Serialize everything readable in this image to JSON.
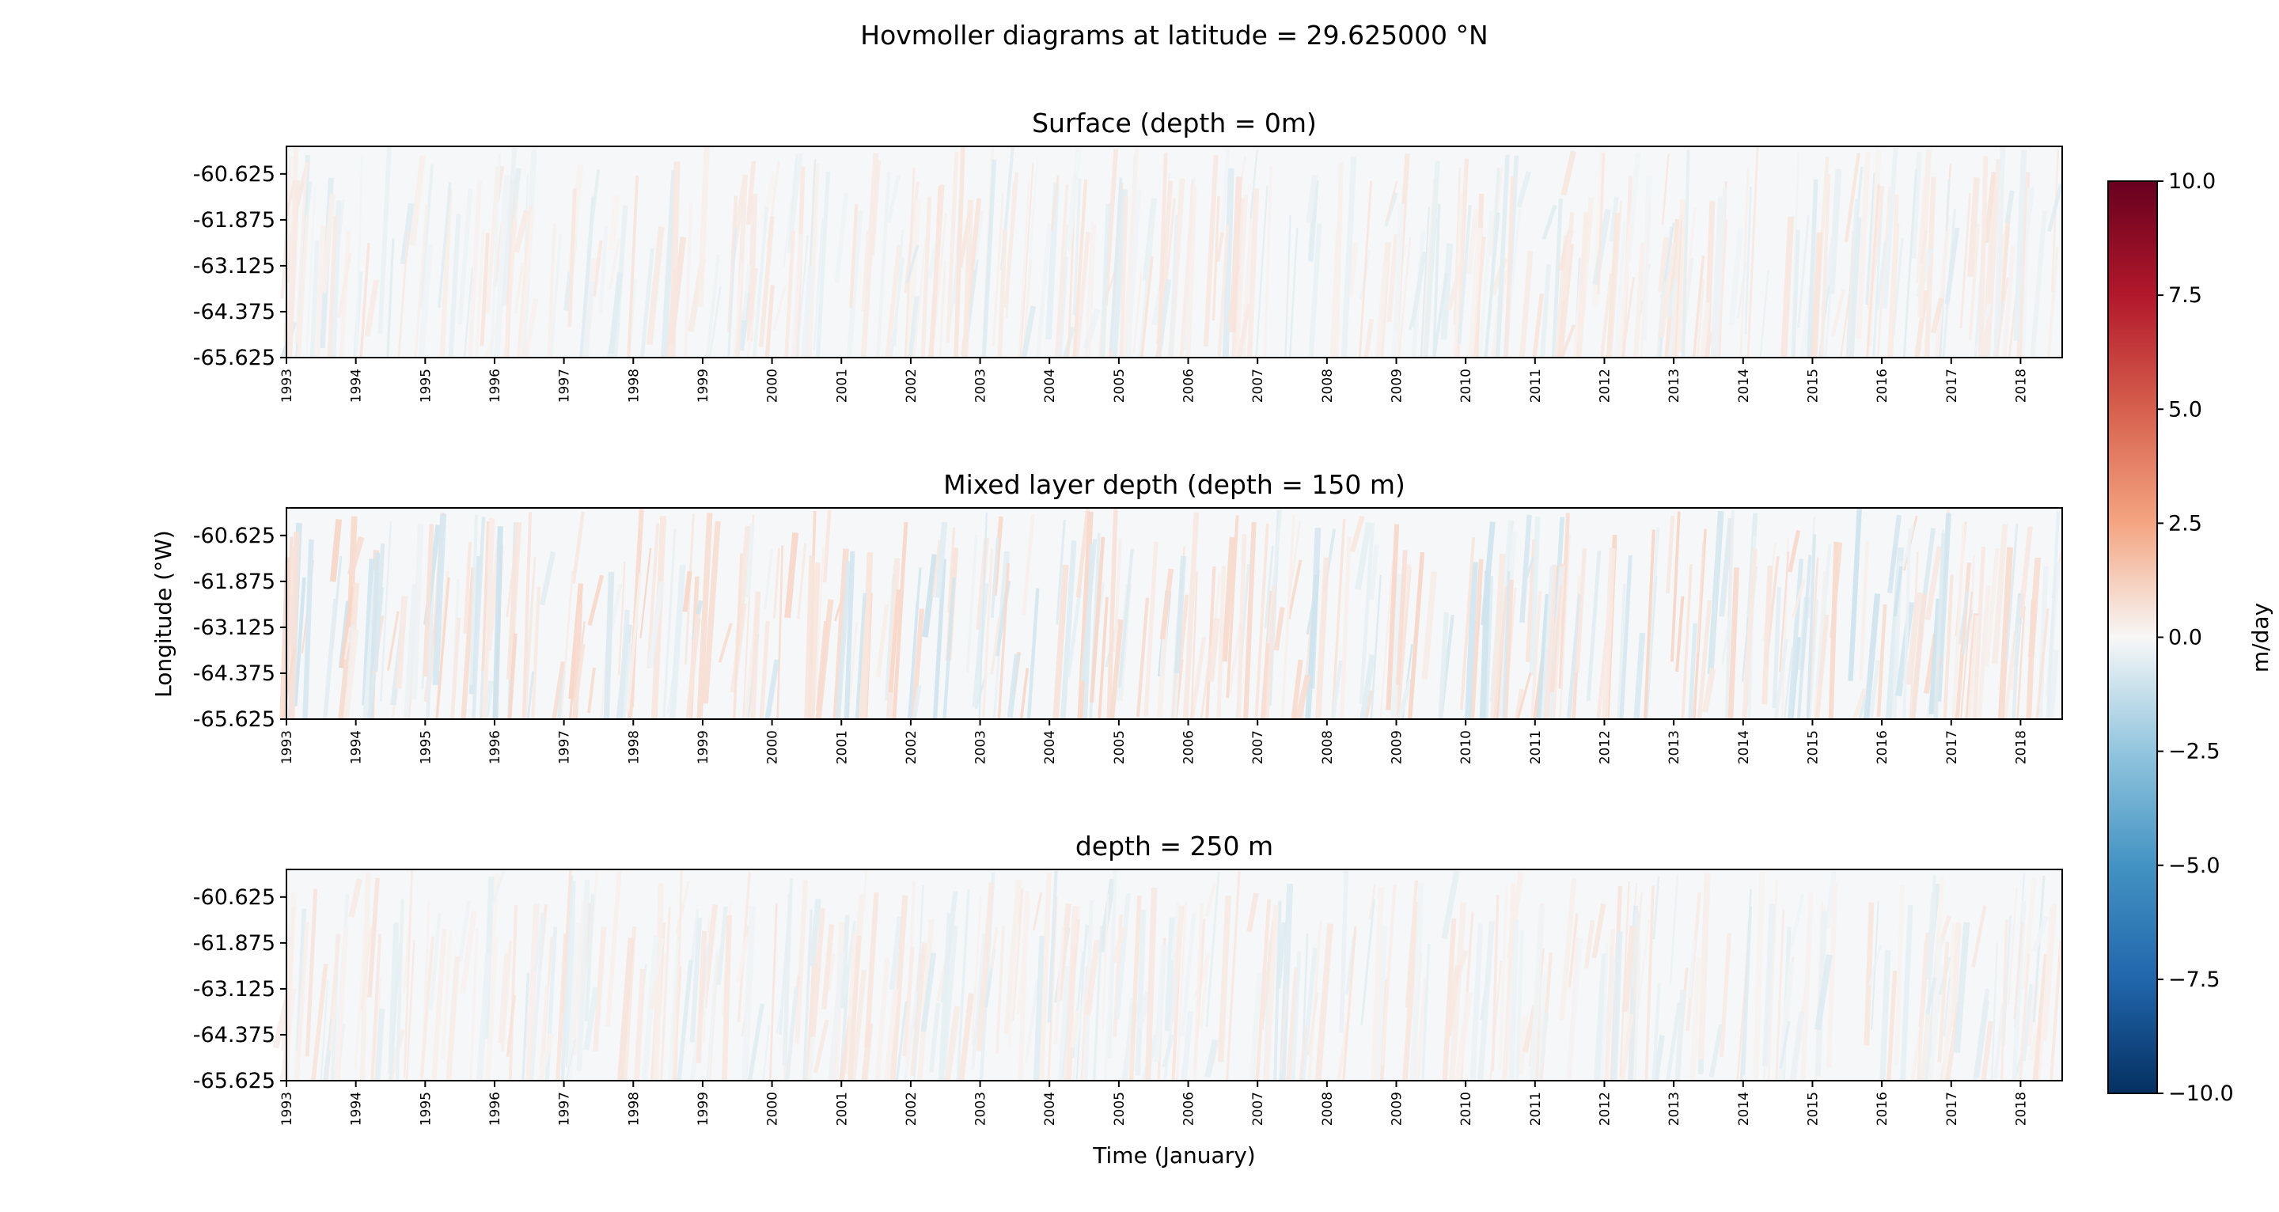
{
  "chart_data": {
    "type": "heatmap",
    "suptitle": "Hovmoller diagrams at latitude = 29.625000 °N",
    "xlabel": "Time (January)",
    "ylabel": "Longitude (°W)",
    "x_ticks": [
      "1993",
      "1994",
      "1995",
      "1996",
      "1997",
      "1998",
      "1999",
      "2000",
      "2001",
      "2002",
      "2003",
      "2004",
      "2005",
      "2006",
      "2007",
      "2008",
      "2009",
      "2010",
      "2011",
      "2012",
      "2013",
      "2014",
      "2015",
      "2016",
      "2017",
      "2018"
    ],
    "x_range_years": [
      1993,
      2018.6
    ],
    "y_ticks": [
      "-60.625",
      "-61.875",
      "-63.125",
      "-64.375",
      "-65.625"
    ],
    "y_tick_values": [
      -60.625,
      -61.875,
      -63.125,
      -64.375,
      -65.625
    ],
    "y_range": [
      -65.625,
      -59.875
    ],
    "colormap": "RdBu_r",
    "colors": {
      "min": "#053061",
      "low": "#2166ac",
      "mid_low": "#92c5de",
      "zero": "#f7f7f7",
      "mid_high": "#f4a582",
      "high": "#b2182b",
      "max": "#67001f"
    },
    "colorbar": {
      "label": "m/day",
      "range": [
        -10.0,
        10.0
      ],
      "ticks": [
        10.0,
        7.5,
        5.0,
        2.5,
        0.0,
        -2.5,
        -5.0,
        -7.5,
        -10.0
      ],
      "tick_labels": [
        "10.0",
        "7.5",
        "5.0",
        "2.5",
        "0.0",
        "−2.5",
        "−5.0",
        "−7.5",
        "−10.0"
      ]
    },
    "panels": [
      {
        "title": "Surface (depth = 0m)",
        "intensity": 0.35
      },
      {
        "title": "Mixed layer depth (depth = 150 m)",
        "intensity": 0.6
      },
      {
        "title": "depth = 250 m",
        "intensity": 0.35
      }
    ]
  }
}
